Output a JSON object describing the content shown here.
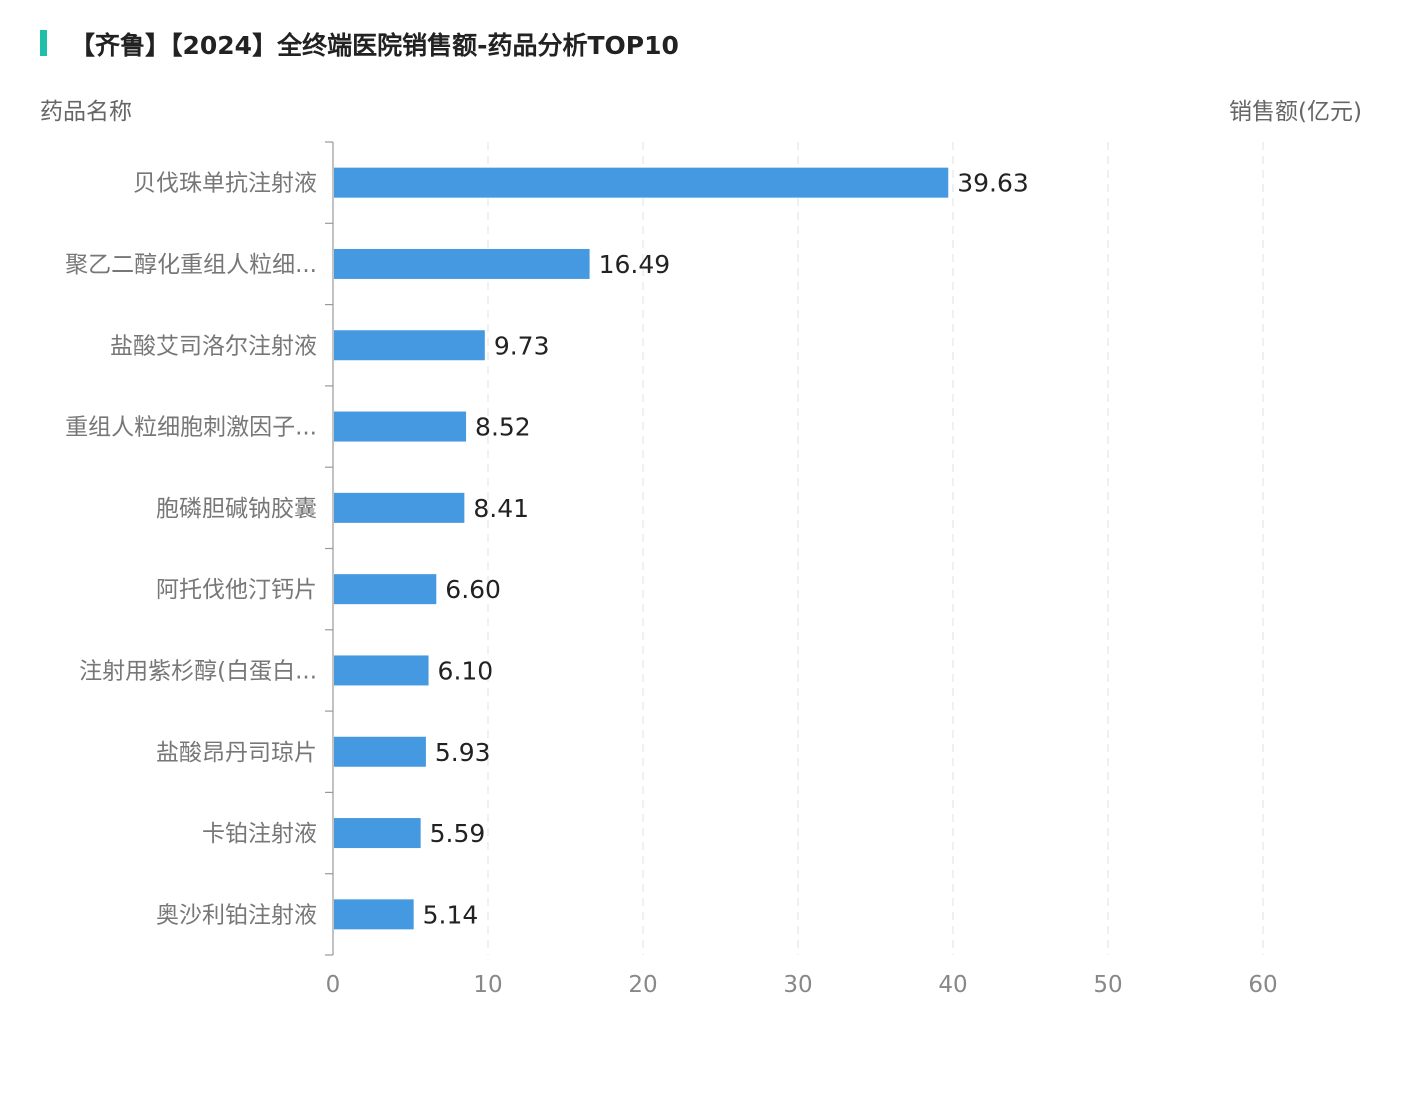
{
  "chart_data": {
    "type": "bar",
    "orientation": "horizontal",
    "title": "【齐鲁】【2024】全终端医院销售额-药品分析TOP10",
    "ylabel": "药品名称",
    "xlabel": "销售额(亿元)",
    "categories": [
      "贝伐珠单抗注射液",
      "聚乙二醇化重组人粒细...",
      "盐酸艾司洛尔注射液",
      "重组人粒细胞刺激因子...",
      "胞磷胆碱钠胶囊",
      "阿托伐他汀钙片",
      "注射用紫杉醇(白蛋白...",
      "盐酸昂丹司琼片",
      "卡铂注射液",
      "奥沙利铂注射液"
    ],
    "values": [
      39.63,
      16.49,
      9.73,
      8.52,
      8.41,
      6.6,
      6.1,
      5.93,
      5.59,
      5.14
    ],
    "value_labels": [
      "39.63",
      "16.49",
      "9.73",
      "8.52",
      "8.41",
      "6.60",
      "6.10",
      "5.93",
      "5.59",
      "5.14"
    ],
    "xlim": [
      0,
      60
    ],
    "xticks": [
      "0",
      "10",
      "20",
      "30",
      "40",
      "50",
      "60"
    ],
    "grid": true,
    "bar_color": "#4599e0",
    "accent_color": "#1fbfa9"
  }
}
